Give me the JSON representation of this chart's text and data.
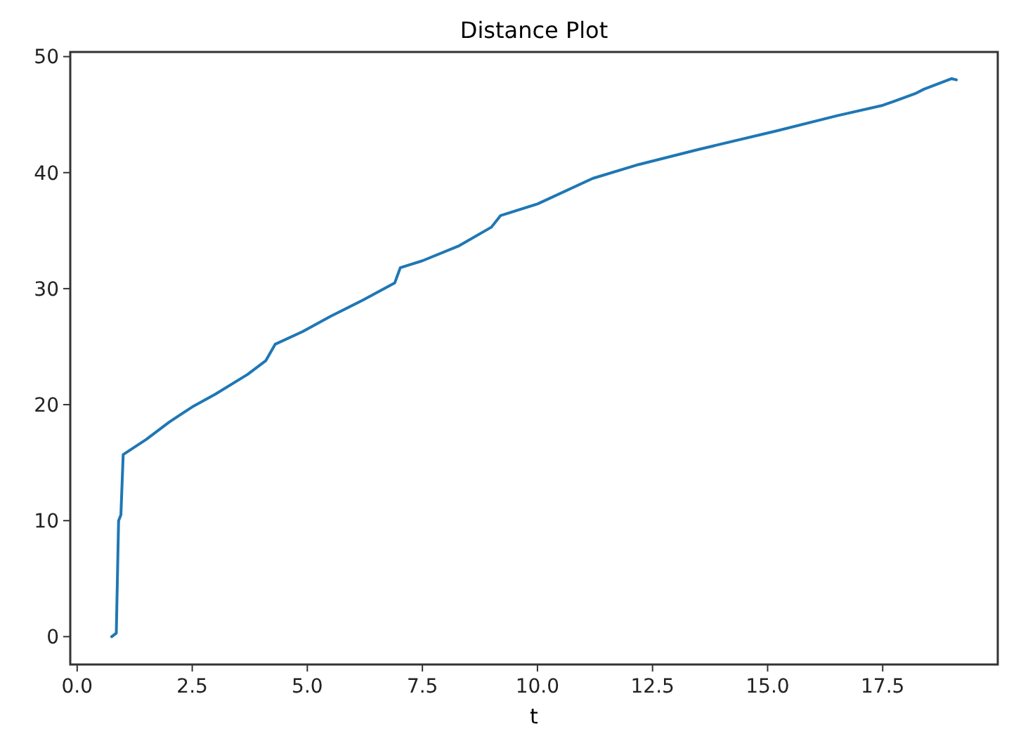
{
  "chart_data": {
    "type": "line",
    "title": "Distance Plot",
    "xlabel": "t",
    "x": [
      0.75,
      0.85,
      0.9,
      0.95,
      1.0,
      1.5,
      2.0,
      2.5,
      3.0,
      3.7,
      4.1,
      4.3,
      4.9,
      5.5,
      6.2,
      6.9,
      7.02,
      7.5,
      8.3,
      9.0,
      9.2,
      10.0,
      11.2,
      12.2,
      13.5,
      15.2,
      16.5,
      17.5,
      18.2,
      18.4,
      18.8,
      19.0,
      19.1
    ],
    "values": [
      0,
      0.3,
      10,
      10.5,
      15.7,
      17.0,
      18.5,
      19.8,
      20.9,
      22.6,
      23.8,
      25.2,
      26.3,
      27.6,
      29.0,
      30.5,
      31.8,
      32.4,
      33.7,
      35.3,
      36.3,
      37.3,
      39.5,
      40.7,
      42.0,
      43.6,
      44.9,
      45.8,
      46.8,
      47.2,
      47.8,
      48.1,
      48.0
    ],
    "color": "#1f77b4",
    "xlim": [
      -0.15,
      20.0
    ],
    "ylim": [
      -2.4,
      50.4
    ],
    "xticks": [
      {
        "value": 0,
        "label": "0.0"
      },
      2.5,
      {
        "value": 5,
        "label": "5.0"
      },
      7.5,
      {
        "value": 10,
        "label": "10.0"
      },
      12.5,
      {
        "value": 15,
        "label": "15.0"
      },
      17.5
    ],
    "yticks": [
      0,
      10,
      20,
      30,
      40,
      50
    ]
  }
}
